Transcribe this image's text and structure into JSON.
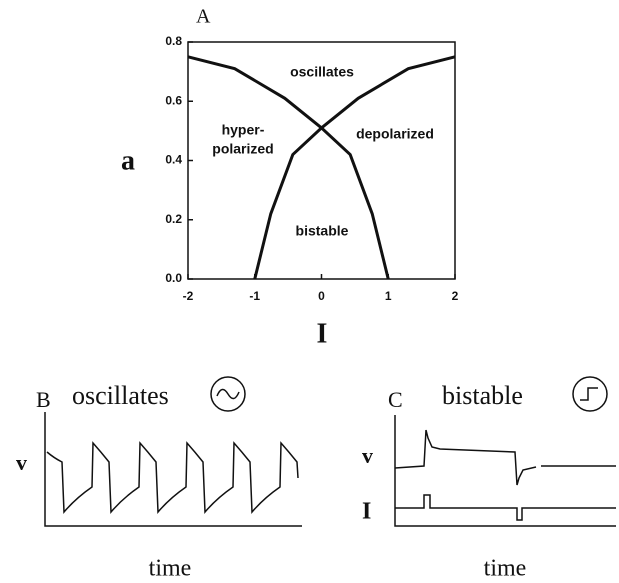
{
  "chart_data": {
    "type": "line",
    "panel_label": "A",
    "xlabel": "I",
    "ylabel": "a",
    "series": [
      {
        "color": "#111111",
        "x": [
          -2,
          -1.3,
          -0.55,
          0,
          0.43,
          0.76,
          1
        ],
        "values": [
          0.75,
          0.71,
          0.61,
          0.51,
          0.42,
          0.22,
          0
        ]
      },
      {
        "color": "#111111",
        "x": [
          2,
          1.3,
          0.55,
          0,
          -0.43,
          -0.76,
          -1
        ],
        "values": [
          0.75,
          0.71,
          0.61,
          0.51,
          0.42,
          0.22,
          0
        ]
      }
    ],
    "xlim": [
      -2,
      2
    ],
    "xticks": [
      -2,
      -1,
      0,
      1,
      2
    ],
    "ylim": [
      0,
      0.8
    ],
    "yticks": [
      {
        "value": 0,
        "label": "0.0"
      },
      0.2,
      0.4,
      0.6,
      0.8
    ],
    "annotations": [
      "oscillates",
      "hyper-",
      "polarized",
      "depolarized",
      "bistable"
    ]
  },
  "panel_b": {
    "label": "B",
    "title": "oscillates",
    "ylabel": "v",
    "xlabel": "time"
  },
  "panel_c": {
    "label": "C",
    "title": "bistable",
    "ylabels": [
      "v",
      "I"
    ],
    "xlabel": "time"
  }
}
